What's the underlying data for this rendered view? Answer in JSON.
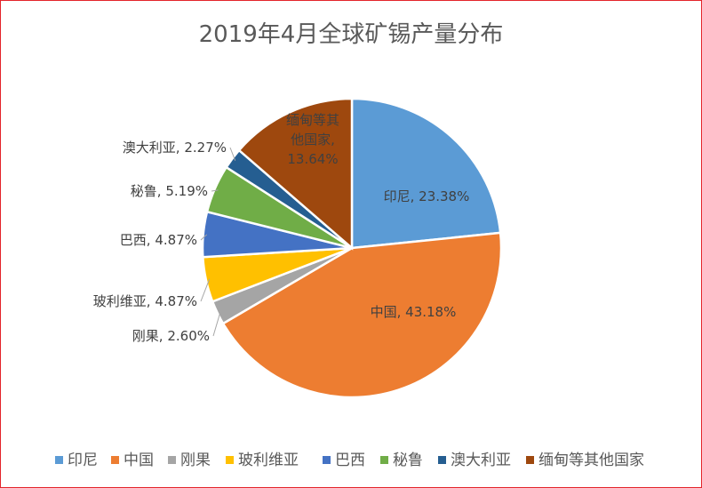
{
  "chart_data": {
    "type": "pie",
    "title": "2019年4月全球矿锡产量分布",
    "categories": [
      "印尼",
      "中国",
      "刚果",
      "玻利维亚",
      "巴西",
      "秘鲁",
      "澳大利亚",
      "缅甸等其他国家"
    ],
    "values": [
      23.38,
      43.18,
      2.6,
      4.87,
      4.87,
      5.19,
      2.27,
      13.64
    ],
    "unit": "%",
    "data_labels": [
      [
        "印尼, 23.38%"
      ],
      [
        "中国, 43.18%"
      ],
      [
        "刚果, 2.60%"
      ],
      [
        "玻利维亚, 4.87%"
      ],
      [
        "巴西, 4.87%"
      ],
      [
        "秘鲁, 5.19%"
      ],
      [
        "澳大利亚, 2.27%"
      ],
      [
        "缅甸等其",
        "他国家,",
        "13.64%"
      ]
    ],
    "colors": [
      "#5b9bd5",
      "#ed7d31",
      "#a5a5a5",
      "#ffc000",
      "#4472c4",
      "#70ad47",
      "#255e91",
      "#9e480e"
    ],
    "legend_position": "bottom"
  }
}
